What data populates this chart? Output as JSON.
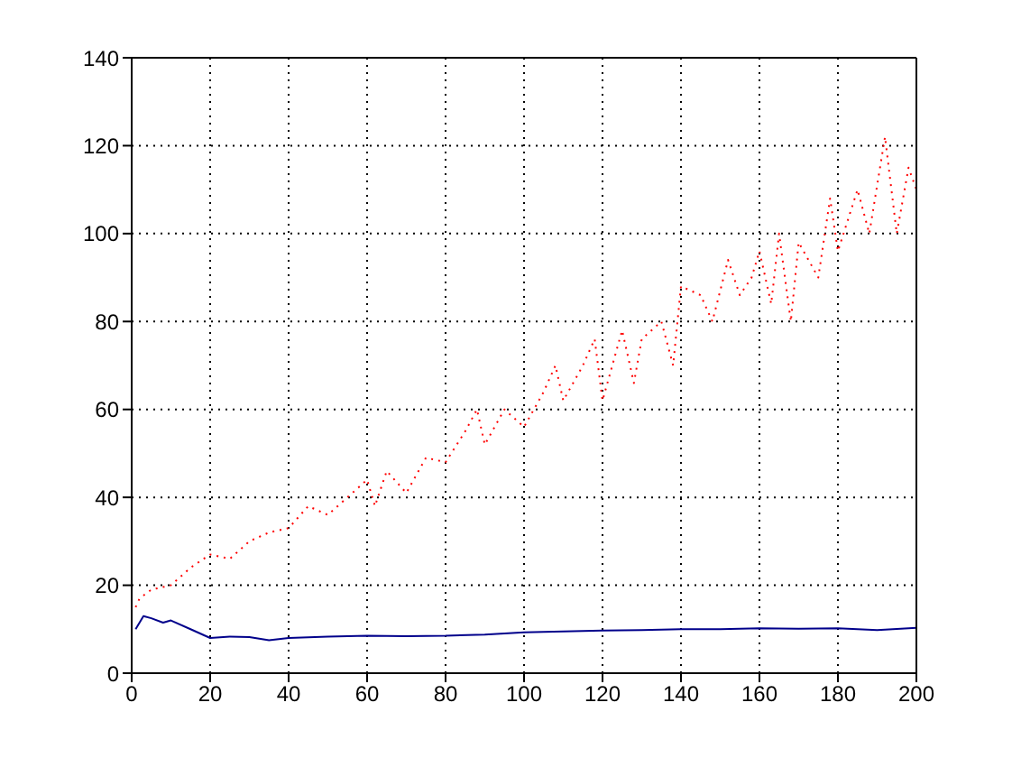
{
  "chart_data": {
    "type": "line",
    "series": [
      {
        "color": "#ff0000",
        "line_style": "dotted",
        "x": [
          1,
          2,
          5,
          10,
          15,
          20,
          25,
          30,
          35,
          40,
          45,
          50,
          55,
          60,
          62,
          65,
          70,
          75,
          80,
          85,
          88,
          90,
          95,
          100,
          105,
          108,
          110,
          115,
          118,
          120,
          125,
          128,
          130,
          135,
          138,
          140,
          145,
          148,
          152,
          155,
          158,
          160,
          163,
          165,
          168,
          170,
          175,
          178,
          180,
          185,
          188,
          192,
          195,
          198,
          200
        ],
        "values": [
          15,
          17,
          19,
          20,
          24,
          27,
          26,
          30,
          32,
          33,
          38,
          36,
          40,
          44,
          38,
          46,
          41,
          49,
          48,
          55,
          60,
          52,
          60,
          56,
          64,
          70,
          62,
          70,
          76,
          62,
          78,
          66,
          76,
          80,
          70,
          88,
          86,
          80,
          94,
          86,
          90,
          96,
          84,
          100,
          80,
          98,
          90,
          108,
          96,
          110,
          100,
          122,
          100,
          115,
          110
        ]
      },
      {
        "color": "#00008b",
        "line_style": "solid",
        "x": [
          1,
          3,
          5,
          8,
          10,
          15,
          20,
          25,
          30,
          35,
          40,
          50,
          60,
          70,
          80,
          90,
          100,
          110,
          120,
          130,
          140,
          150,
          160,
          170,
          180,
          190,
          200
        ],
        "values": [
          10,
          13,
          12.5,
          11.5,
          12,
          10,
          8,
          8.3,
          8.2,
          7.5,
          8,
          8.3,
          8.5,
          8.4,
          8.5,
          8.8,
          9.3,
          9.5,
          9.7,
          9.8,
          10,
          10,
          10.2,
          10.1,
          10.2,
          9.8,
          10.3
        ]
      }
    ],
    "xlim": [
      0,
      200
    ],
    "xticks": [
      0,
      20,
      40,
      60,
      80,
      100,
      120,
      140,
      160,
      180,
      200
    ],
    "ylim": [
      0,
      140
    ],
    "yticks": [
      0,
      20,
      40,
      60,
      80,
      100,
      120,
      140
    ],
    "grid": true,
    "marker": "none"
  }
}
